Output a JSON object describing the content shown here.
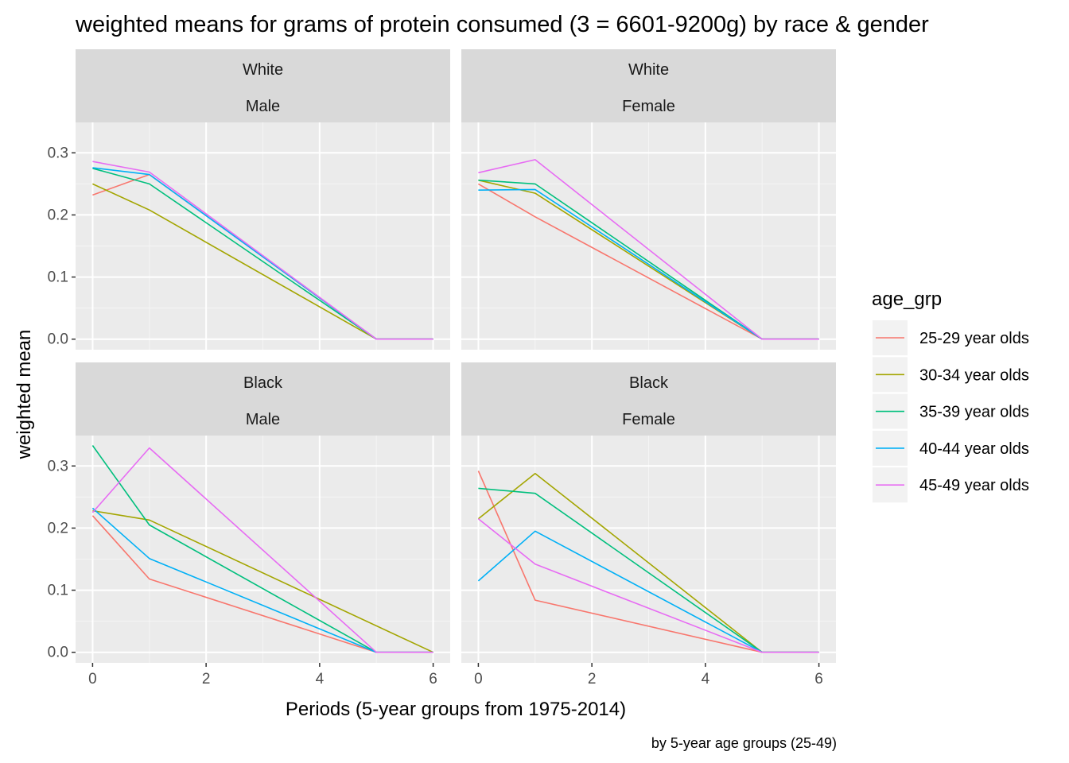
{
  "chart_data": {
    "type": "line",
    "title": "weighted means for grams of protein consumed (3 = 6601-9200g) by race & gender",
    "xlabel": "Periods (5-year groups from 1975-2014)",
    "ylabel": "weighted mean",
    "caption": "by 5-year age groups (25-49)",
    "xlim": [
      -0.3,
      6.3
    ],
    "ylim": [
      -0.017,
      0.349
    ],
    "x_ticks": [
      0,
      2,
      4,
      6
    ],
    "x_tick_labels": [
      "0",
      "2",
      "4",
      "6"
    ],
    "y_ticks": [
      0.0,
      0.1,
      0.2,
      0.3
    ],
    "y_tick_labels": [
      "0.0",
      "0.1",
      "0.2",
      "0.3"
    ],
    "grid": true,
    "legend": {
      "title": "age_grp",
      "position": "right",
      "entries": [
        "25-29 year olds",
        "30-34 year olds",
        "35-39 year olds",
        "40-44 year olds",
        "45-49 year olds"
      ]
    },
    "series_colors": {
      "25-29 year olds": "#F8766D",
      "30-34 year olds": "#A3A500",
      "35-39 year olds": "#00BF7D",
      "40-44 year olds": "#00B0F6",
      "45-49 year olds": "#E76BF3"
    },
    "panels": [
      {
        "race": "White",
        "gender": "Male",
        "series": [
          {
            "name": "25-29 year olds",
            "x": [
              0,
              1,
              5,
              6
            ],
            "y": [
              0.232,
              0.265,
              0.0,
              0.0
            ]
          },
          {
            "name": "30-34 year olds",
            "x": [
              0,
              1,
              5,
              6
            ],
            "y": [
              0.25,
              0.208,
              0.0,
              0.0
            ]
          },
          {
            "name": "35-39 year olds",
            "x": [
              0,
              1,
              5,
              6
            ],
            "y": [
              0.275,
              0.25,
              0.0,
              0.0
            ]
          },
          {
            "name": "40-44 year olds",
            "x": [
              0,
              1,
              5,
              6
            ],
            "y": [
              0.276,
              0.265,
              0.0,
              0.0
            ]
          },
          {
            "name": "45-49 year olds",
            "x": [
              0,
              1,
              5,
              6
            ],
            "y": [
              0.286,
              0.269,
              0.0,
              0.0
            ]
          }
        ]
      },
      {
        "race": "White",
        "gender": "Female",
        "series": [
          {
            "name": "25-29 year olds",
            "x": [
              0,
              1,
              5,
              6
            ],
            "y": [
              0.25,
              0.197,
              0.0,
              0.0
            ]
          },
          {
            "name": "30-34 year olds",
            "x": [
              0,
              1,
              5,
              6
            ],
            "y": [
              0.256,
              0.235,
              0.0,
              0.0
            ]
          },
          {
            "name": "35-39 year olds",
            "x": [
              0,
              1,
              5,
              6
            ],
            "y": [
              0.256,
              0.25,
              0.0,
              0.0
            ]
          },
          {
            "name": "40-44 year olds",
            "x": [
              0,
              1,
              5,
              6
            ],
            "y": [
              0.24,
              0.241,
              0.0,
              0.0
            ]
          },
          {
            "name": "45-49 year olds",
            "x": [
              0,
              1,
              5,
              6
            ],
            "y": [
              0.268,
              0.289,
              0.0,
              0.0
            ]
          }
        ]
      },
      {
        "race": "Black",
        "gender": "Male",
        "series": [
          {
            "name": "25-29 year olds",
            "x": [
              0,
              1,
              5,
              6
            ],
            "y": [
              0.22,
              0.118,
              0.0,
              0.0
            ]
          },
          {
            "name": "30-34 year olds",
            "x": [
              0,
              1,
              6
            ],
            "y": [
              0.228,
              0.213,
              0.0
            ]
          },
          {
            "name": "35-39 year olds",
            "x": [
              0,
              1,
              5,
              6
            ],
            "y": [
              0.333,
              0.205,
              0.0,
              0.0
            ]
          },
          {
            "name": "40-44 year olds",
            "x": [
              0,
              1,
              5,
              6
            ],
            "y": [
              0.232,
              0.151,
              0.0,
              0.0
            ]
          },
          {
            "name": "45-49 year olds",
            "x": [
              0,
              1,
              5,
              6
            ],
            "y": [
              0.225,
              0.329,
              0.0,
              0.0
            ]
          }
        ]
      },
      {
        "race": "Black",
        "gender": "Female",
        "series": [
          {
            "name": "25-29 year olds",
            "x": [
              0,
              1,
              5,
              6
            ],
            "y": [
              0.292,
              0.084,
              0.0,
              0.0
            ]
          },
          {
            "name": "30-34 year olds",
            "x": [
              0,
              1,
              5,
              6
            ],
            "y": [
              0.215,
              0.288,
              0.0,
              0.0
            ]
          },
          {
            "name": "35-39 year olds",
            "x": [
              0,
              1,
              5,
              6
            ],
            "y": [
              0.264,
              0.256,
              0.0,
              0.0
            ]
          },
          {
            "name": "40-44 year olds",
            "x": [
              0,
              1,
              5,
              6
            ],
            "y": [
              0.115,
              0.195,
              0.0,
              0.0
            ]
          },
          {
            "name": "45-49 year olds",
            "x": [
              0,
              1,
              5,
              6
            ],
            "y": [
              0.215,
              0.142,
              0.0,
              0.0
            ]
          }
        ]
      }
    ]
  }
}
